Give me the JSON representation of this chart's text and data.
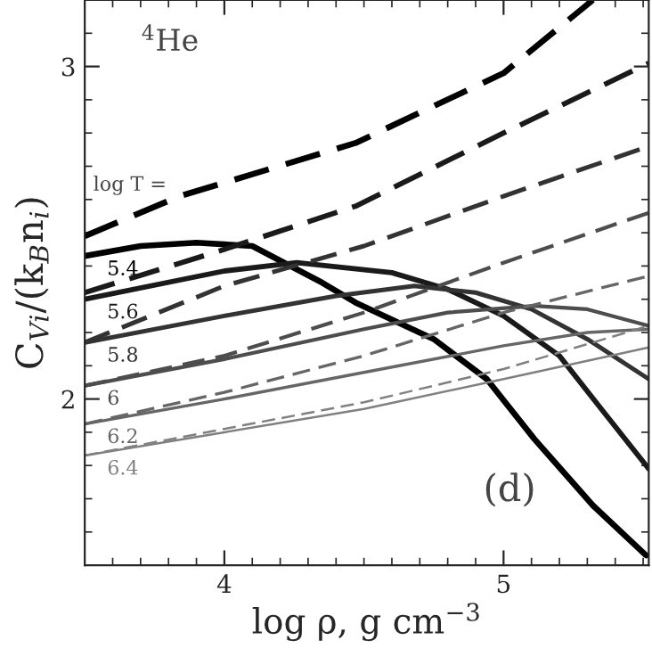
{
  "chart_data": {
    "type": "line",
    "xlabel": "log ρ, g cm$^{−3}$",
    "ylabel": "C$_{Vi}$/(k$_{B}$n$_{i}$)",
    "xlim": [
      3.5,
      5.52
    ],
    "ylim": [
      1.5,
      3.2
    ],
    "xticks": [
      4,
      5
    ],
    "yticks": [
      2,
      3
    ],
    "grid": false,
    "legend": false,
    "annotations": [
      "$^{4}$He",
      "(d)",
      "log T ="
    ],
    "series": [
      {
        "name": "5.4",
        "color": "#000000",
        "line_style": "solid",
        "x": [
          3.5,
          3.7,
          3.9,
          4.1,
          4.35,
          4.47,
          4.75,
          4.94,
          5.11,
          5.32,
          5.51
        ],
        "values": [
          2.43,
          2.46,
          2.47,
          2.46,
          2.35,
          2.29,
          2.18,
          2.06,
          1.88,
          1.68,
          1.53
        ]
      },
      {
        "name": "5.6",
        "color": "#1a1a1a",
        "line_style": "solid",
        "x": [
          3.5,
          4.0,
          4.26,
          4.6,
          4.8,
          5.0,
          5.2,
          5.35,
          5.52
        ],
        "values": [
          2.3,
          2.385,
          2.41,
          2.38,
          2.33,
          2.25,
          2.13,
          1.97,
          1.79
        ]
      },
      {
        "name": "5.8",
        "color": "#333333",
        "line_style": "solid",
        "x": [
          3.5,
          4.0,
          4.4,
          4.68,
          4.9,
          5.1,
          5.3,
          5.52
        ],
        "values": [
          2.17,
          2.25,
          2.31,
          2.34,
          2.32,
          2.27,
          2.18,
          2.06
        ]
      },
      {
        "name": "6",
        "color": "#4d4d4d",
        "line_style": "solid",
        "x": [
          3.5,
          4.0,
          4.5,
          4.8,
          5.11,
          5.3,
          5.52
        ],
        "values": [
          2.04,
          2.12,
          2.21,
          2.26,
          2.28,
          2.27,
          2.22
        ]
      },
      {
        "name": "6.2",
        "color": "#666666",
        "line_style": "solid",
        "x": [
          3.5,
          4.0,
          4.5,
          5.0,
          5.3,
          5.52
        ],
        "values": [
          1.925,
          2.0,
          2.08,
          2.16,
          2.2,
          2.21
        ]
      },
      {
        "name": "6.4",
        "color": "#808080",
        "line_style": "solid",
        "x": [
          3.5,
          4.0,
          4.5,
          5.0,
          5.52
        ],
        "values": [
          1.83,
          1.9,
          1.97,
          2.06,
          2.155
        ]
      },
      {
        "color": "#000000",
        "line_style": "dashed",
        "x": [
          3.5,
          3.84,
          4.47,
          5.0,
          5.32
        ],
        "values": [
          2.49,
          2.61,
          2.77,
          2.98,
          3.2
        ]
      },
      {
        "color": "#1a1a1a",
        "line_style": "dashed",
        "x": [
          3.5,
          4.0,
          4.47,
          5.0,
          5.52
        ],
        "values": [
          2.32,
          2.45,
          2.58,
          2.8,
          3.01
        ]
      },
      {
        "color": "#333333",
        "line_style": "dashed",
        "x": [
          3.5,
          4.0,
          4.5,
          5.0,
          5.52
        ],
        "values": [
          2.17,
          2.34,
          2.46,
          2.61,
          2.76
        ]
      },
      {
        "color": "#4d4d4d",
        "line_style": "dashed",
        "x": [
          3.5,
          4.0,
          4.5,
          5.0,
          5.52
        ],
        "values": [
          2.04,
          2.13,
          2.26,
          2.41,
          2.56
        ]
      },
      {
        "color": "#666666",
        "line_style": "dashed",
        "x": [
          3.5,
          4.0,
          4.5,
          5.0,
          5.52
        ],
        "values": [
          1.925,
          2.02,
          2.13,
          2.26,
          2.37
        ]
      },
      {
        "color": "#808080",
        "line_style": "dashed",
        "x": [
          3.5,
          4.0,
          4.5,
          5.0,
          5.52
        ],
        "values": [
          1.83,
          1.91,
          1.99,
          2.09,
          2.22
        ]
      }
    ]
  }
}
